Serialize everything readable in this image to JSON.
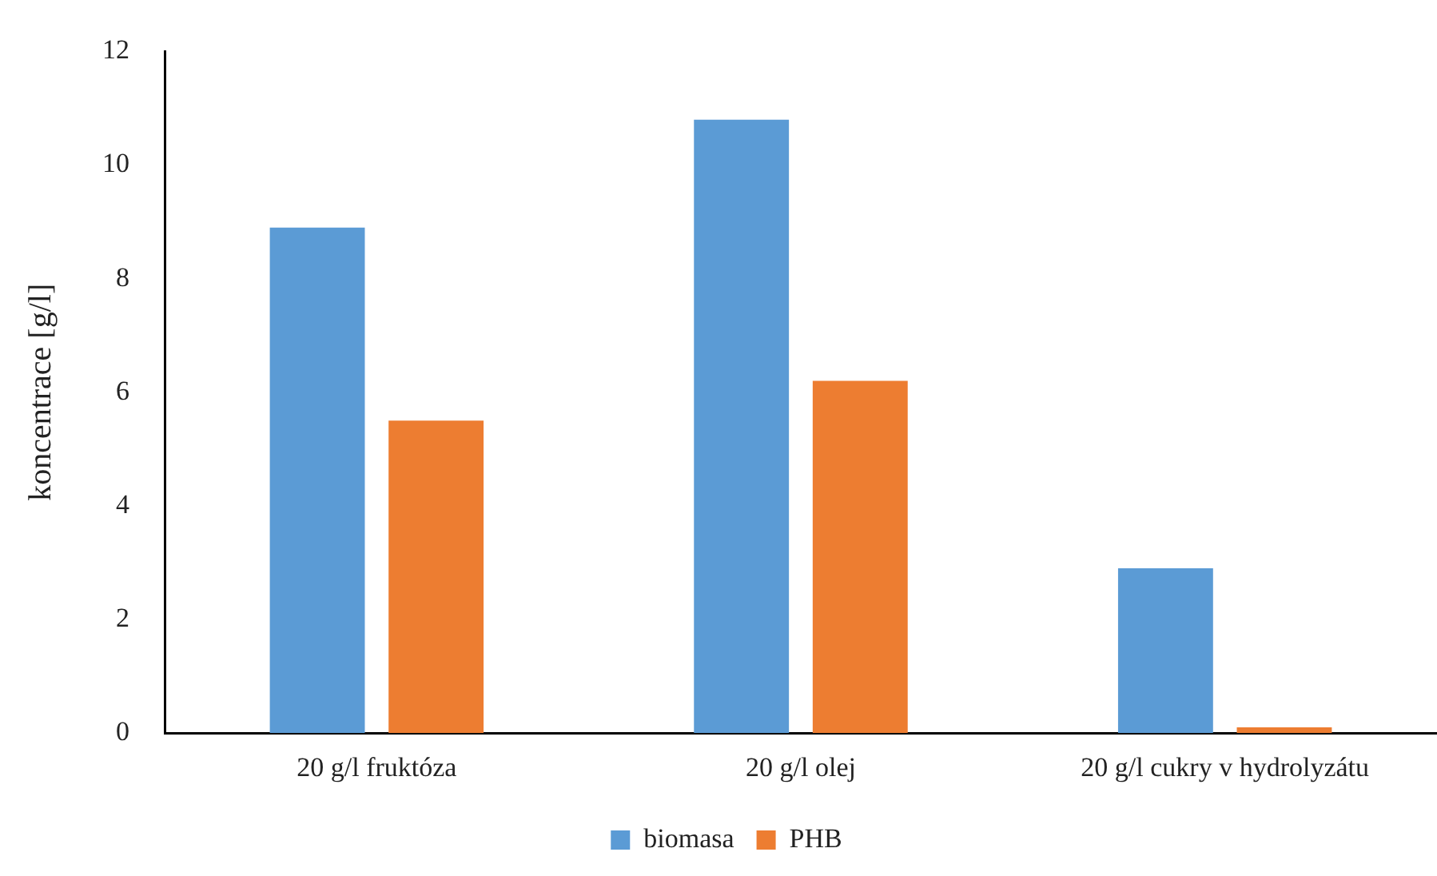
{
  "chart_data": {
    "type": "bar",
    "ylabel": "koncentrace [g/l]",
    "categories": [
      "20 g/l fruktóza",
      "20 g/l olej",
      "20 g/l cukry v hydrolyzátu"
    ],
    "series": [
      {
        "name": "biomasa",
        "color": "#5b9bd5",
        "values": [
          8.9,
          10.8,
          2.9
        ]
      },
      {
        "name": "PHB",
        "color": "#ed7d31",
        "values": [
          5.5,
          6.2,
          0.1
        ]
      }
    ],
    "ylim": [
      0,
      12
    ],
    "yticks": [
      0,
      2,
      4,
      6,
      8,
      10,
      12
    ],
    "grid": false,
    "legend": "bottom"
  }
}
